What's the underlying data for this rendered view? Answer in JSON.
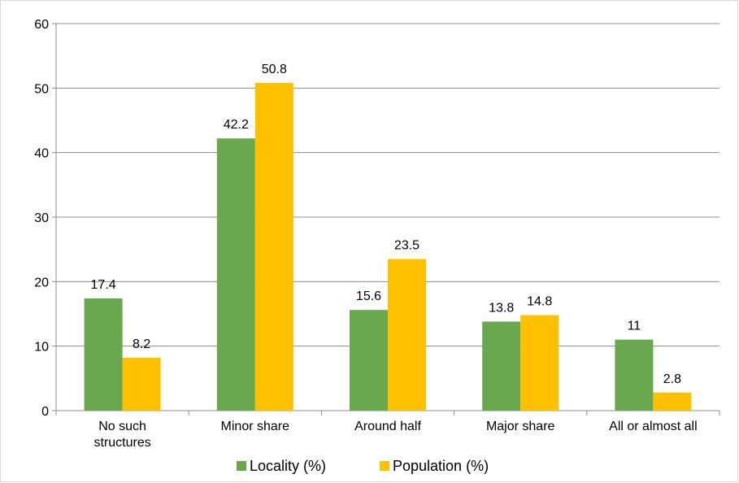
{
  "chart_data": {
    "type": "bar",
    "categories": [
      [
        "No such",
        "structures"
      ],
      [
        "Minor share"
      ],
      [
        "Around half"
      ],
      [
        "Major share"
      ],
      [
        "All or almost all"
      ]
    ],
    "series": [
      {
        "name": "Locality (%)",
        "color": "#6aa84f",
        "values": [
          17.4,
          42.2,
          15.6,
          13.8,
          11
        ]
      },
      {
        "name": "Population (%)",
        "color": "#ffc000",
        "values": [
          8.2,
          50.8,
          23.5,
          14.8,
          2.8
        ]
      }
    ],
    "value_labels": [
      [
        "17.4",
        "42.2",
        "15.6",
        "13.8",
        "11"
      ],
      [
        "8.2",
        "50.8",
        "23.5",
        "14.8",
        "2.8"
      ]
    ],
    "yticks": [
      0,
      10,
      20,
      30,
      40,
      50,
      60
    ],
    "ylim": [
      0,
      60
    ],
    "grid": true,
    "legend_position": "bottom"
  }
}
